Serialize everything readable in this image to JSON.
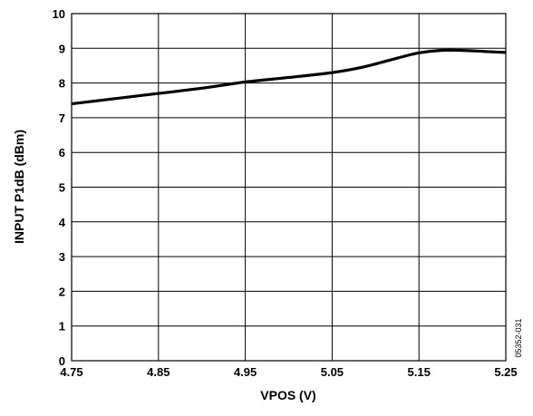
{
  "chart_data": {
    "type": "line",
    "title": "",
    "xlabel": "VPOS (V)",
    "ylabel": "INPUT P1dB (dBm)",
    "xlim": [
      4.75,
      5.25
    ],
    "ylim": [
      0,
      10
    ],
    "xticks": [
      4.75,
      4.85,
      4.95,
      5.05,
      5.15,
      5.25
    ],
    "xtick_labels": [
      "4.75",
      "4.85",
      "4.95",
      "5.05",
      "5.15",
      "5.25"
    ],
    "yticks": [
      0,
      1,
      2,
      3,
      4,
      5,
      6,
      7,
      8,
      9,
      10
    ],
    "ytick_labels": [
      "0",
      "1",
      "2",
      "3",
      "4",
      "5",
      "6",
      "7",
      "8",
      "9",
      "10"
    ],
    "grid": true,
    "legend": "none",
    "series": [
      {
        "color": "#000000",
        "x": [
          4.75,
          4.8,
          4.85,
          4.9,
          4.95,
          5.0,
          5.05,
          5.08,
          5.1,
          5.13,
          5.15,
          5.175,
          5.2,
          5.225,
          5.25
        ],
        "values": [
          7.4,
          7.55,
          7.7,
          7.85,
          8.03,
          8.16,
          8.3,
          8.43,
          8.55,
          8.75,
          8.87,
          8.94,
          8.94,
          8.91,
          8.88
        ]
      }
    ],
    "figure_id": "05352-031"
  }
}
